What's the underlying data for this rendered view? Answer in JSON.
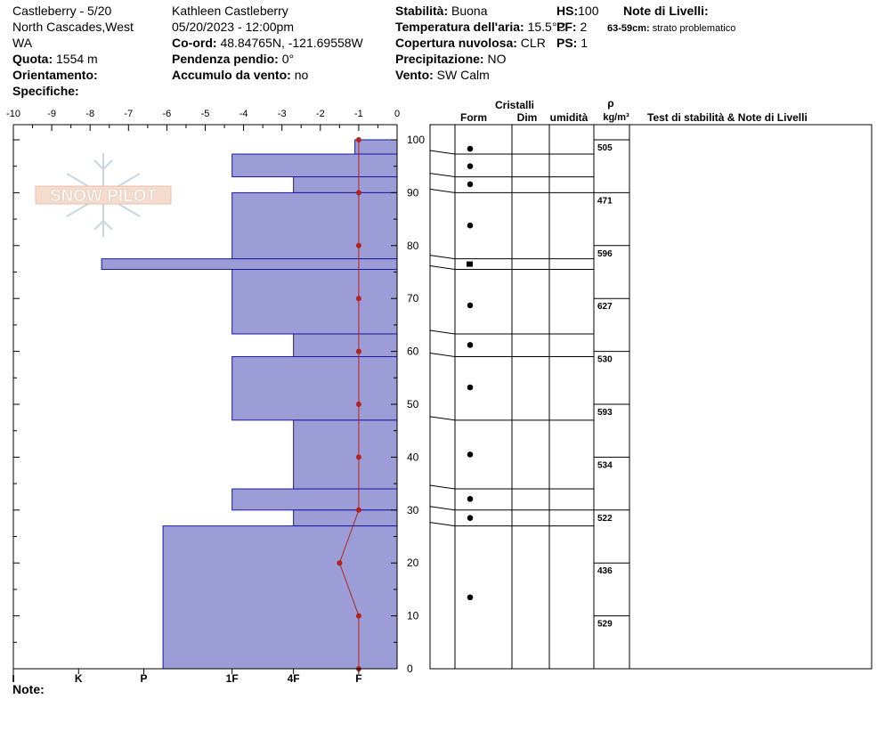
{
  "header": {
    "site": "Castleberry - 5/20",
    "location_1": "North Cascades,West",
    "location_2": "WA",
    "quota_label": "Quota:",
    "quota_value": "1554 m",
    "orientamento_label": "Orientamento:",
    "specifiche_label": "Specifiche:",
    "observer": "Kathleen Castleberry",
    "datetime": "05/20/2023 - 12:00pm",
    "coord_label": "Co-ord:",
    "coord_value": "48.84765N, -121.69558W",
    "pendenza_label": "Pendenza pendio:",
    "pendenza_value": "0°",
    "accumulo_label": "Accumulo da vento:",
    "accumulo_value": "no",
    "stabilita_label": "Stabilità:",
    "stabilita_value": "Buona",
    "temp_label": "Temperatura dell'aria:",
    "temp_value": "15.5°C",
    "copertura_label": "Copertura nuvolosa:",
    "copertura_value": "CLR",
    "precip_label": "Precipitazione:",
    "precip_value": "NO",
    "vento_label": "Vento:",
    "vento_value": "SW Calm",
    "hs_label": "HS:",
    "hs_value": "100",
    "pf_label": "PF:",
    "pf_value": "2",
    "ps_label": "PS:",
    "ps_value": "1",
    "note_livelli_label": "Note di Livelli:",
    "layer_note_range": "63-59cm:",
    "layer_note_text": "strato problematico",
    "note_label": "Note:"
  },
  "logo_text": "SNOW PILOT",
  "table_headers": {
    "cristalli": "Cristalli",
    "form": "Form",
    "dim": "Dim",
    "umidita": "umidità",
    "rho": "ρ",
    "rho_unit": "kg/m³",
    "test": "Test di stabilità & Note di Livelli"
  },
  "colors": {
    "layer_fill": "#9c9cd6",
    "layer_stroke": "#1a1a9e",
    "temp_line": "#b22222"
  },
  "chart_data": {
    "type": "bar",
    "title": "",
    "y_axis": {
      "label": "",
      "range": [
        0,
        100
      ],
      "ticks": [
        0,
        10,
        20,
        30,
        40,
        50,
        60,
        70,
        80,
        90,
        100
      ]
    },
    "temperature_axis": {
      "range": [
        -10,
        0
      ],
      "ticks": [
        "-10",
        "-9",
        "-8",
        "-7",
        "-6",
        "-5",
        "-4",
        "-3",
        "-2",
        "-1",
        "0"
      ]
    },
    "hardness_axis": {
      "ticks": [
        "I",
        "K",
        "P",
        "1F",
        "4F",
        "F"
      ],
      "values": [
        10,
        8.3,
        6.6,
        4.3,
        2.7,
        1
      ]
    },
    "hardness_layers": [
      {
        "top": 100,
        "bottom": 97.3,
        "hardness": 1.1
      },
      {
        "top": 97.3,
        "bottom": 93,
        "hardness": 4.3
      },
      {
        "top": 93,
        "bottom": 90,
        "hardness": 2.7
      },
      {
        "top": 90,
        "bottom": 77.5,
        "hardness": 4.3
      },
      {
        "top": 77.5,
        "bottom": 75.5,
        "hardness": 7.7
      },
      {
        "top": 75.5,
        "bottom": 63.3,
        "hardness": 4.3
      },
      {
        "top": 63.3,
        "bottom": 59,
        "hardness": 2.7
      },
      {
        "top": 59,
        "bottom": 47,
        "hardness": 4.3
      },
      {
        "top": 47,
        "bottom": 34,
        "hardness": 2.7
      },
      {
        "top": 34,
        "bottom": 30,
        "hardness": 4.3
      },
      {
        "top": 30,
        "bottom": 27,
        "hardness": 2.7
      },
      {
        "top": 27,
        "bottom": 0,
        "hardness": 6.1
      }
    ],
    "temperature_profile": [
      {
        "depth": 100,
        "temp": -1
      },
      {
        "depth": 90,
        "temp": -1
      },
      {
        "depth": 80,
        "temp": -1
      },
      {
        "depth": 70,
        "temp": -1
      },
      {
        "depth": 60,
        "temp": -1
      },
      {
        "depth": 50,
        "temp": -1
      },
      {
        "depth": 40,
        "temp": -1
      },
      {
        "depth": 30,
        "temp": -1
      },
      {
        "depth": 20,
        "temp": -1.5
      },
      {
        "depth": 10,
        "temp": -1
      },
      {
        "depth": 0,
        "temp": -1
      }
    ],
    "layer_boundaries": [
      97.3,
      93,
      90,
      77.5,
      75.5,
      63.3,
      59,
      47,
      34,
      30,
      27
    ],
    "crystal_symbols": [
      {
        "depth": 98.3,
        "symbol": "dot"
      },
      {
        "depth": 95,
        "symbol": "dot"
      },
      {
        "depth": 91.6,
        "symbol": "dot"
      },
      {
        "depth": 83.8,
        "symbol": "dot"
      },
      {
        "depth": 76.5,
        "symbol": "square"
      },
      {
        "depth": 68.7,
        "symbol": "dot"
      },
      {
        "depth": 61.2,
        "symbol": "dot"
      },
      {
        "depth": 53.2,
        "symbol": "dot"
      },
      {
        "depth": 40.5,
        "symbol": "dot"
      },
      {
        "depth": 32.1,
        "symbol": "dot"
      },
      {
        "depth": 28.5,
        "symbol": "dot"
      },
      {
        "depth": 13.5,
        "symbol": "dot"
      }
    ],
    "density": [
      {
        "top": 100,
        "bottom": 90,
        "value": "505"
      },
      {
        "top": 90,
        "bottom": 80,
        "value": "471"
      },
      {
        "top": 80,
        "bottom": 70,
        "value": "596"
      },
      {
        "top": 70,
        "bottom": 60,
        "value": "627"
      },
      {
        "top": 60,
        "bottom": 50,
        "value": "530"
      },
      {
        "top": 50,
        "bottom": 40,
        "value": "593"
      },
      {
        "top": 40,
        "bottom": 30,
        "value": "534"
      },
      {
        "top": 30,
        "bottom": 20,
        "value": "522"
      },
      {
        "top": 20,
        "bottom": 10,
        "value": "436"
      },
      {
        "top": 10,
        "bottom": 0,
        "value": "529"
      }
    ],
    "grid": false
  }
}
